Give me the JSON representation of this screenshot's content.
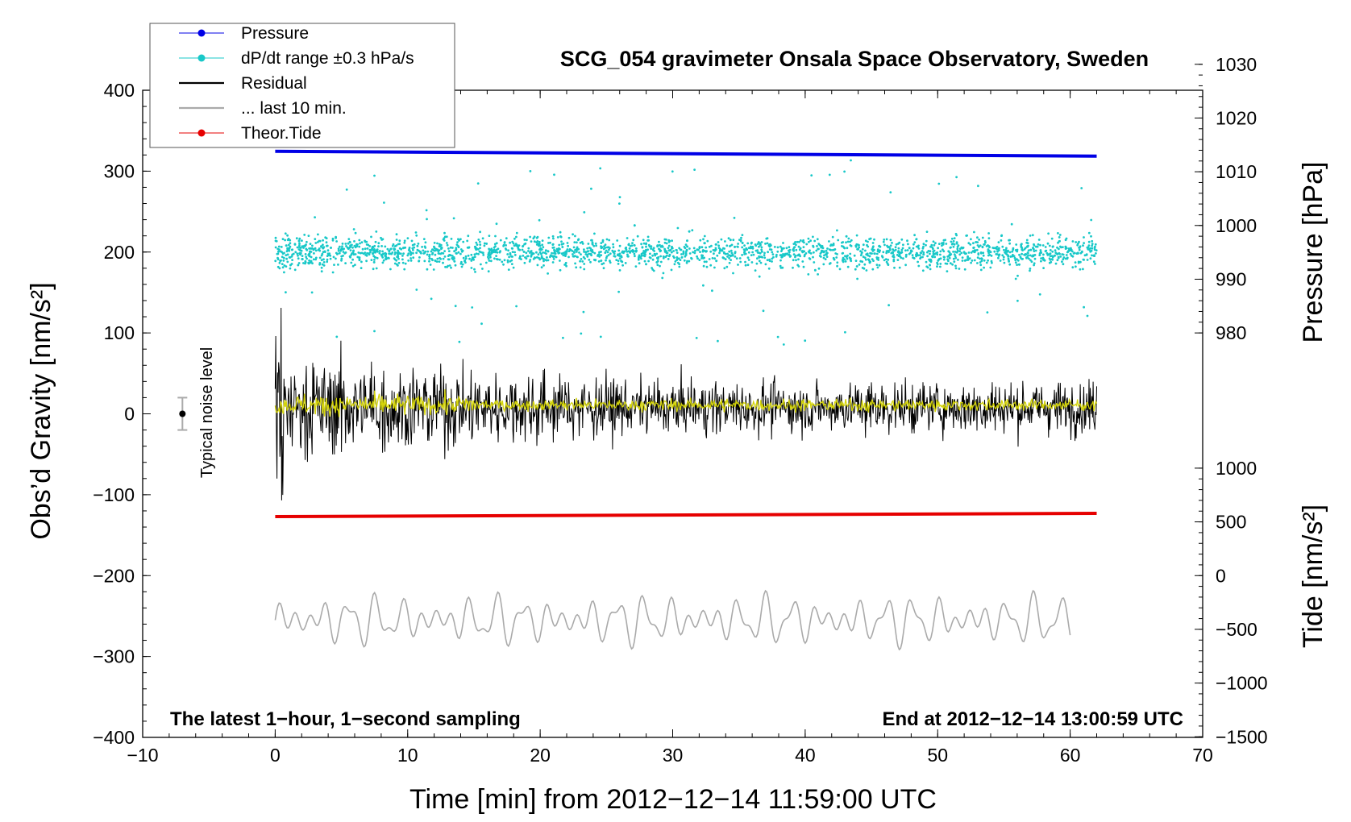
{
  "chart_data": {
    "type": "scatter",
    "title": "SCG_054 gravimeter Onsala Space Observatory, Sweden",
    "xlabel": "Time [min] from 2012−12−14 11:59:00 UTC",
    "ylabel_left": "Obs’d Gravity [nm/s²]",
    "ylabel_pressure": "Pressure [hPa]",
    "ylabel_tide": "Tide [nm/s²]",
    "xlim": [
      -10,
      70
    ],
    "ylim": [
      -400,
      400
    ],
    "pressure_lim": [
      980,
      1030
    ],
    "tide_lim": [
      -1500,
      1000
    ],
    "x_ticks": [
      -10,
      0,
      10,
      20,
      30,
      40,
      50,
      60,
      70
    ],
    "x_tick_labels": [
      "−10",
      "0",
      "10",
      "20",
      "30",
      "40",
      "50",
      "60",
      "70"
    ],
    "y_ticks": [
      -400,
      -300,
      -200,
      -100,
      0,
      100,
      200,
      300,
      400
    ],
    "y_tick_labels": [
      "−400",
      "−300",
      "−200",
      "−100",
      "0",
      "100",
      "200",
      "300",
      "400"
    ],
    "pressure_ticks": [
      980,
      990,
      1000,
      1010,
      1020,
      1030
    ],
    "pressure_tick_labels": [
      "980",
      "990",
      "1000",
      "1010",
      "1020",
      "1030"
    ],
    "tide_ticks": [
      -1500,
      -1000,
      -500,
      0,
      500,
      1000
    ],
    "tide_tick_labels": [
      "−1500",
      "−1000",
      "−500",
      "0",
      "500",
      "1000"
    ],
    "annotations": {
      "left": "The latest 1−hour, 1−second sampling",
      "right": "End at 2012−12−14 13:00:59 UTC",
      "noise_label": "Typical noise level"
    },
    "noise_bar": {
      "x": -7,
      "center": 0,
      "half_range": 20
    },
    "legend": [
      {
        "label": "Pressure",
        "color": "#0000e6",
        "style": "line-dot"
      },
      {
        "label": "dP/dt range ±0.3 hPa/s",
        "color": "#18c8c8",
        "style": "line-dot"
      },
      {
        "label": "Residual",
        "color": "#000000",
        "style": "line"
      },
      {
        "label": "... last 10 min.",
        "color": "#aaaaaa",
        "style": "line"
      },
      {
        "label": "Theor.Tide",
        "color": "#e60000",
        "style": "line-dot"
      }
    ],
    "series": [
      {
        "name": "Pressure",
        "axis": "pressure",
        "color": "#0000e6",
        "x_range": [
          0,
          62
        ],
        "start": 1013.8,
        "end": 1012.9
      },
      {
        "name": "dP/dt",
        "axis": "gravity",
        "color": "#18c8c8",
        "x_range": [
          0,
          62
        ],
        "center": 200,
        "spread": 25
      },
      {
        "name": "Residual",
        "axis": "gravity",
        "color": "#000000",
        "x_range": [
          0,
          62
        ],
        "center": 8,
        "amplitude_start": 80,
        "amplitude_end": 40
      },
      {
        "name": "... last 10 min.",
        "axis": "gravity",
        "color": "#aaaaaa",
        "x_range": [
          0,
          60
        ],
        "center": -255,
        "amplitude": 45
      },
      {
        "name": "Theor.Tide",
        "axis": "gravity",
        "color": "#e60000",
        "x_range": [
          0,
          62
        ],
        "start": -127,
        "end": -123
      }
    ]
  }
}
